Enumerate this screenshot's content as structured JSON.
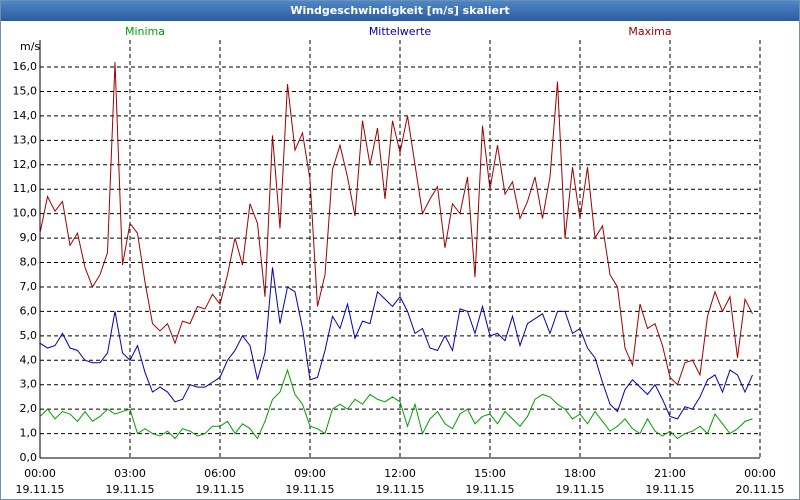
{
  "chart_data": {
    "type": "line",
    "title": "Windgeschwindigkeit [m/s] skaliert",
    "y_label": "m/s",
    "x": [
      0,
      0.25,
      0.5,
      0.75,
      1,
      1.25,
      1.5,
      1.75,
      2,
      2.25,
      2.5,
      2.75,
      3,
      3.25,
      3.5,
      3.75,
      4,
      4.25,
      4.5,
      4.75,
      5,
      5.25,
      5.5,
      5.75,
      6,
      6.25,
      6.5,
      6.75,
      7,
      7.25,
      7.5,
      7.75,
      8,
      8.25,
      8.5,
      8.75,
      9,
      9.25,
      9.5,
      9.75,
      10,
      10.25,
      10.5,
      10.75,
      11,
      11.25,
      11.5,
      11.75,
      12,
      12.25,
      12.5,
      12.75,
      13,
      13.25,
      13.5,
      13.75,
      14,
      14.25,
      14.5,
      14.75,
      15,
      15.25,
      15.5,
      15.75,
      16,
      16.25,
      16.5,
      16.75,
      17,
      17.25,
      17.5,
      17.75,
      18,
      18.25,
      18.5,
      18.75,
      19,
      19.25,
      19.5,
      19.75,
      20,
      20.25,
      20.5,
      20.75,
      21,
      21.25,
      21.5,
      21.75,
      22,
      22.25,
      22.5,
      22.75,
      23,
      23.25,
      23.5,
      23.75
    ],
    "series": [
      {
        "name": "Minima",
        "color": "#00a000",
        "values": [
          1.7,
          2.0,
          1.6,
          1.9,
          1.8,
          1.5,
          1.9,
          1.5,
          1.7,
          2.0,
          1.8,
          1.9,
          2.0,
          1.0,
          1.2,
          1.0,
          0.9,
          1.1,
          0.8,
          1.2,
          1.1,
          0.9,
          1.0,
          1.3,
          1.3,
          1.5,
          1.0,
          1.4,
          1.2,
          0.8,
          1.5,
          2.4,
          2.7,
          3.6,
          2.6,
          2.2,
          1.3,
          1.2,
          1.0,
          2.0,
          2.2,
          2.0,
          2.4,
          2.2,
          2.6,
          2.4,
          2.3,
          2.5,
          2.3,
          1.3,
          2.2,
          1.0,
          1.6,
          1.9,
          1.4,
          1.2,
          1.8,
          2.0,
          1.4,
          1.7,
          1.8,
          1.4,
          1.9,
          1.6,
          1.3,
          1.7,
          2.4,
          2.6,
          2.5,
          2.2,
          2.0,
          1.6,
          1.8,
          1.4,
          1.9,
          1.5,
          1.1,
          1.3,
          1.6,
          1.2,
          1.0,
          1.6,
          1.1,
          0.9,
          1.1,
          0.8,
          1.0,
          1.1,
          1.3,
          1.0,
          1.8,
          1.4,
          1.0,
          1.2,
          1.5,
          1.6
        ]
      },
      {
        "name": "Mittelwerte",
        "color": "#0000b4",
        "values": [
          4.7,
          4.5,
          4.6,
          5.1,
          4.5,
          4.4,
          4.0,
          3.9,
          3.9,
          4.3,
          6.0,
          4.3,
          4.0,
          4.6,
          3.5,
          2.7,
          2.9,
          2.7,
          2.3,
          2.4,
          3.0,
          2.9,
          2.9,
          3.1,
          3.3,
          4.0,
          4.4,
          5.0,
          4.6,
          3.2,
          4.3,
          7.8,
          5.5,
          7.0,
          6.8,
          5.3,
          3.2,
          3.3,
          4.4,
          5.8,
          5.3,
          6.3,
          4.9,
          5.6,
          5.5,
          6.8,
          6.5,
          6.2,
          6.6,
          6.0,
          5.1,
          5.3,
          4.5,
          4.4,
          5.0,
          4.4,
          6.1,
          6.0,
          5.1,
          6.2,
          5.0,
          5.1,
          4.8,
          5.8,
          4.6,
          5.5,
          5.7,
          5.9,
          5.1,
          6.0,
          6.0,
          5.1,
          5.3,
          4.5,
          4.1,
          3.1,
          2.2,
          1.9,
          2.8,
          3.2,
          2.9,
          2.6,
          3.0,
          2.4,
          1.7,
          1.6,
          2.1,
          2.0,
          2.5,
          3.2,
          3.4,
          2.7,
          3.6,
          3.4,
          2.7,
          3.4
        ]
      },
      {
        "name": "Maxima",
        "color": "#a00000",
        "values": [
          9.2,
          10.7,
          10.1,
          10.5,
          8.7,
          9.2,
          7.8,
          7.0,
          7.5,
          8.4,
          16.2,
          7.9,
          9.6,
          9.2,
          7.2,
          5.5,
          5.2,
          5.5,
          4.7,
          5.6,
          5.5,
          6.2,
          6.1,
          6.7,
          6.3,
          7.5,
          9.0,
          7.9,
          10.4,
          9.6,
          6.6,
          13.2,
          9.4,
          15.3,
          12.6,
          13.3,
          11.4,
          6.2,
          7.5,
          11.8,
          12.8,
          11.5,
          9.9,
          13.8,
          12.0,
          13.5,
          10.6,
          13.8,
          12.5,
          14.0,
          12.0,
          10.0,
          10.6,
          11.1,
          8.6,
          10.4,
          10.0,
          11.5,
          7.4,
          13.6,
          11.0,
          12.8,
          10.8,
          11.3,
          9.8,
          10.5,
          11.5,
          9.8,
          11.5,
          15.4,
          9.0,
          11.9,
          9.8,
          11.9,
          9.0,
          9.5,
          7.5,
          7.0,
          4.5,
          3.8,
          6.3,
          5.3,
          5.5,
          4.6,
          3.3,
          3.0,
          3.9,
          4.0,
          3.4,
          5.8,
          6.8,
          6.0,
          6.6,
          4.1,
          6.5,
          5.9
        ]
      }
    ],
    "xlim": [
      0,
      24
    ],
    "xticks": [
      {
        "value": 0,
        "label": "00:00"
      },
      {
        "value": 3,
        "label": "03:00"
      },
      {
        "value": 6,
        "label": "06:00"
      },
      {
        "value": 9,
        "label": "09:00"
      },
      {
        "value": 12,
        "label": "12:00"
      },
      {
        "value": 15,
        "label": "15:00"
      },
      {
        "value": 18,
        "label": "18:00"
      },
      {
        "value": 21,
        "label": "21:00"
      },
      {
        "value": 24,
        "label": "00:00"
      }
    ],
    "xtick_dates": [
      "19.11.15",
      "19.11.15",
      "19.11.15",
      "19.11.15",
      "19.11.15",
      "19.11.15",
      "19.11.15",
      "19.11.15",
      "20.11.15"
    ],
    "ylim": [
      0,
      16
    ],
    "yticks": [
      {
        "value": 0,
        "label": "0,0"
      },
      {
        "value": 1,
        "label": "1,0"
      },
      {
        "value": 2,
        "label": "2,0"
      },
      {
        "value": 3,
        "label": "3,0"
      },
      {
        "value": 4,
        "label": "4,0"
      },
      {
        "value": 5,
        "label": "5,0"
      },
      {
        "value": 6,
        "label": "6,0"
      },
      {
        "value": 7,
        "label": "7,0"
      },
      {
        "value": 8,
        "label": "8,0"
      },
      {
        "value": 9,
        "label": "9,0"
      },
      {
        "value": 10,
        "label": "10,0"
      },
      {
        "value": 11,
        "label": "11,0"
      },
      {
        "value": 12,
        "label": "12,0"
      },
      {
        "value": 13,
        "label": "13,0"
      },
      {
        "value": 14,
        "label": "14,0"
      },
      {
        "value": 15,
        "label": "15,0"
      },
      {
        "value": 16,
        "label": "16,0"
      }
    ],
    "grid": true
  }
}
